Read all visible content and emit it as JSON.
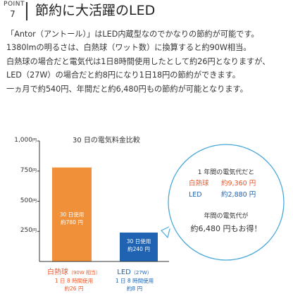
{
  "header": {
    "point_label": "POINT",
    "point_number": "7",
    "title": "節約に大活躍のLED"
  },
  "paragraph": {
    "lines": [
      "「Antor（アントール）」はLED内蔵型なのでかなりの節約が可能です。",
      "1380lmの明るさは、白熱球（ワット数）に換算すると約90W相当。",
      "白熱球の場合だと電気代は1日8時間使用したとして約26円となりますが、",
      "LED（27W）の場合だと約8円になり1日18円の節約ができます。",
      "一ヵ月で約540円、年間だと約6,480円もの節約が可能となります。"
    ]
  },
  "chart_data": {
    "type": "bar",
    "title": "30 日の電気料金比較",
    "y_ticks": [
      {
        "value": 1000,
        "label": "1,000",
        "unit": "円"
      },
      {
        "value": 750,
        "label": "750",
        "unit": "円"
      },
      {
        "value": 500,
        "label": "500",
        "unit": "円"
      },
      {
        "value": 250,
        "label": "250",
        "unit": "円"
      }
    ],
    "ylim": [
      0,
      1000
    ],
    "bars": [
      {
        "value": 780,
        "color": "#f0913a",
        "inner_lines": [
          "30 日使用",
          "約780 円"
        ],
        "label_main": "白熱球",
        "label_sub": "（90W 相当）",
        "label_color": "#e9582b",
        "detail_lines": [
          "1 日 8 時間使用",
          "約26 円"
        ]
      },
      {
        "value": 240,
        "color": "#1f63b2",
        "inner_lines": [
          "30 日使用",
          "約240 円"
        ],
        "label_main": "LED",
        "label_sub": "（27W）",
        "label_color": "#1f63b2",
        "detail_lines": [
          "1 日 8 時間使用",
          "約8 円"
        ]
      }
    ]
  },
  "bubble": {
    "title": "1 年間の電気代だと",
    "rows": [
      {
        "label": "白熱球",
        "value": "約9,360 円",
        "color": "#e9582b"
      },
      {
        "label": "LED",
        "value": "約2,880 円",
        "color": "#1f63b2"
      }
    ],
    "saving_label": "年間の電気代が",
    "saving_value": "約6,480 円もお得！",
    "colors": {
      "border": "#4aa8d8",
      "text": "#333333"
    }
  }
}
